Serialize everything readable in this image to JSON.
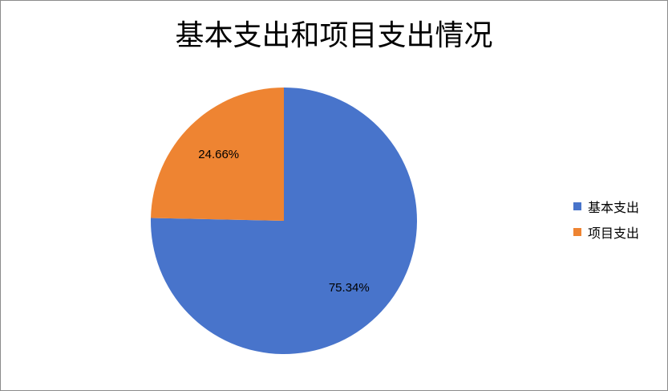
{
  "chart_data": {
    "type": "pie",
    "title": "基本支出和项目支出情况",
    "categories": [
      "基本支出",
      "项目支出"
    ],
    "values": [
      75.34,
      24.66
    ],
    "labels": [
      "75.34%",
      "24.66%"
    ],
    "colors": [
      "#4874CB",
      "#EE8432"
    ],
    "legend_position": "right",
    "start_angle_deg": 0,
    "direction": "clockwise"
  }
}
